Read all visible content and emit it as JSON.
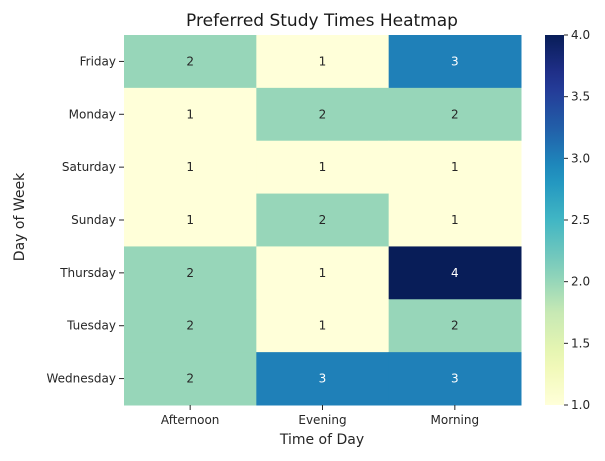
{
  "chart_data": {
    "type": "heatmap",
    "title": "Preferred Study Times Heatmap",
    "xlabel": "Time of Day",
    "ylabel": "Day of Week",
    "x_categories": [
      "Afternoon",
      "Evening",
      "Morning"
    ],
    "y_categories": [
      "Friday",
      "Monday",
      "Saturday",
      "Sunday",
      "Thursday",
      "Tuesday",
      "Wednesday"
    ],
    "values": [
      [
        2,
        1,
        3
      ],
      [
        1,
        2,
        2
      ],
      [
        1,
        1,
        1
      ],
      [
        1,
        2,
        1
      ],
      [
        2,
        1,
        4
      ],
      [
        2,
        1,
        2
      ],
      [
        2,
        3,
        3
      ]
    ],
    "color_range": [
      1.0,
      4.0
    ],
    "colorbar_ticks": [
      "1.0",
      "1.5",
      "2.0",
      "2.5",
      "3.0",
      "3.5",
      "4.0"
    ],
    "colormap": "YlGnBu",
    "annotations": true
  }
}
